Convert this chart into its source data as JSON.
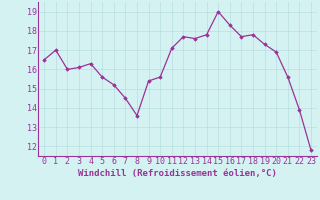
{
  "x": [
    0,
    1,
    2,
    3,
    4,
    5,
    6,
    7,
    8,
    9,
    10,
    11,
    12,
    13,
    14,
    15,
    16,
    17,
    18,
    19,
    20,
    21,
    22,
    23
  ],
  "y": [
    16.5,
    17.0,
    16.0,
    16.1,
    16.3,
    15.6,
    15.2,
    14.5,
    13.6,
    15.4,
    15.6,
    17.1,
    17.7,
    17.6,
    17.8,
    19.0,
    18.3,
    17.7,
    17.8,
    17.3,
    16.9,
    15.6,
    13.9,
    11.8
  ],
  "line_color": "#993399",
  "marker": "D",
  "markersize": 1.8,
  "linewidth": 0.9,
  "xlabel": "Windchill (Refroidissement éolien,°C)",
  "xlim": [
    -0.5,
    23.5
  ],
  "ylim": [
    11.5,
    19.5
  ],
  "yticks": [
    12,
    13,
    14,
    15,
    16,
    17,
    18,
    19
  ],
  "xticks": [
    0,
    1,
    2,
    3,
    4,
    5,
    6,
    7,
    8,
    9,
    10,
    11,
    12,
    13,
    14,
    15,
    16,
    17,
    18,
    19,
    20,
    21,
    22,
    23
  ],
  "background_color": "#d5f2f2",
  "grid_color": "#b8dede",
  "line_border_color": "#993399",
  "tick_color": "#993399",
  "xlabel_color": "#993399",
  "xlabel_fontsize": 6.5,
  "tick_fontsize": 6.0
}
